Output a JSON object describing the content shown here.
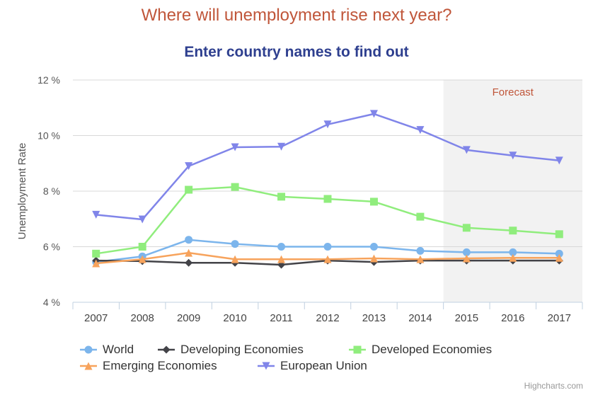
{
  "chart_data": {
    "type": "line",
    "title": "Where will unemployment rise next year?",
    "subtitle": "Enter country names to find out",
    "ylabel": "Unemployment Rate",
    "xlabel": "",
    "ylim": [
      4,
      12
    ],
    "yticks": [
      "4 %",
      "6 %",
      "8 %",
      "10 %",
      "12 %"
    ],
    "ytick_values": [
      4,
      6,
      8,
      10,
      12
    ],
    "categories": [
      "2007",
      "2008",
      "2009",
      "2010",
      "2011",
      "2012",
      "2013",
      "2014",
      "2015",
      "2016",
      "2017"
    ],
    "plot_band": {
      "from": "2015",
      "to": "2017",
      "label": "Forecast"
    },
    "grid": true,
    "legend_position": "bottom",
    "series": [
      {
        "name": "World",
        "color": "#7cb5ec",
        "marker": "circle",
        "values": [
          5.45,
          5.65,
          6.25,
          6.1,
          6.0,
          6.0,
          6.0,
          5.85,
          5.8,
          5.8,
          5.75
        ]
      },
      {
        "name": "Developing Economies",
        "color": "#434348",
        "marker": "diamond",
        "values": [
          5.5,
          5.48,
          5.42,
          5.42,
          5.35,
          5.5,
          5.45,
          5.5,
          5.5,
          5.5,
          5.5
        ]
      },
      {
        "name": "Developed Economies",
        "color": "#90ed7d",
        "marker": "square",
        "values": [
          5.75,
          6.0,
          8.05,
          8.15,
          7.8,
          7.72,
          7.62,
          7.08,
          6.68,
          6.58,
          6.45
        ]
      },
      {
        "name": "Emerging Economies",
        "color": "#f7a35c",
        "marker": "triangle",
        "values": [
          5.4,
          5.55,
          5.78,
          5.55,
          5.55,
          5.55,
          5.58,
          5.55,
          5.58,
          5.6,
          5.6
        ]
      },
      {
        "name": "European Union",
        "color": "#8085e9",
        "marker": "triangle-down",
        "values": [
          7.15,
          6.98,
          8.9,
          9.58,
          9.6,
          10.4,
          10.78,
          10.2,
          9.48,
          9.28,
          9.1
        ]
      }
    ]
  },
  "credits": "Highcharts.com"
}
